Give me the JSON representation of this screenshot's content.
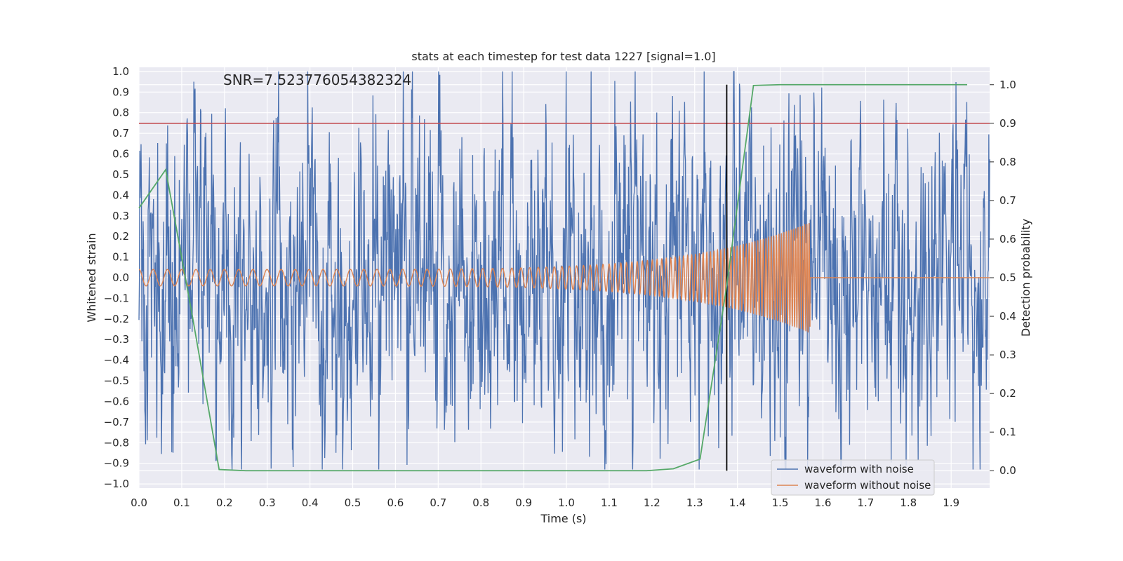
{
  "chart_data": {
    "type": "line",
    "title": "stats at each timestep for test data 1227 [signal=1.0]",
    "xlabel": "Time (s)",
    "ylabel": "Whitened strain",
    "y2label": "Detection probability",
    "annotation": "SNR=7.523776054382324",
    "xlim": [
      0.0,
      1.99
    ],
    "ylim": [
      -1.02,
      1.02
    ],
    "y2lim": [
      -0.045,
      1.045
    ],
    "x_ticks": [
      "0.0",
      "0.1",
      "0.2",
      "0.3",
      "0.4",
      "0.5",
      "0.6",
      "0.7",
      "0.8",
      "0.9",
      "1.0",
      "1.1",
      "1.2",
      "1.3",
      "1.4",
      "1.5",
      "1.6",
      "1.7",
      "1.8",
      "1.9"
    ],
    "y_ticks": [
      "1.0",
      "0.9",
      "0.8",
      "0.7",
      "0.6",
      "0.5",
      "0.4",
      "0.3",
      "0.2",
      "0.1",
      "0.0",
      "−0.1",
      "−0.2",
      "−0.3",
      "−0.4",
      "−0.5",
      "−0.6",
      "−0.7",
      "−0.8",
      "−0.9",
      "−1.0"
    ],
    "y2_ticks": [
      "1.0",
      "0.9",
      "0.8",
      "0.7",
      "0.6",
      "0.5",
      "0.4",
      "0.3",
      "0.2",
      "0.1",
      "0.0"
    ],
    "threshold": {
      "value": 0.9,
      "axis": "right",
      "color": "#c44e52"
    },
    "event_time": {
      "x": 1.375,
      "ymin": 0.0,
      "ymax": 1.0,
      "axis": "right",
      "color": "#000000"
    },
    "series": [
      {
        "name": "waveform with noise",
        "color": "#4c72b0",
        "axis": "left",
        "noise_samples_approx": 2048,
        "amplitude_range": [
          -0.93,
          1.0
        ]
      },
      {
        "name": "waveform without noise",
        "color": "#dd8452",
        "axis": "left",
        "description_values": {
          "start_amplitude": 0.04,
          "end_amplitude": 0.27,
          "chirp_end_time": 1.57,
          "start_frequency": 30,
          "end_frequency": 200
        }
      },
      {
        "name": "Detection probability",
        "color": "#55a868",
        "axis": "right",
        "x": [
          0.0,
          0.0625,
          0.125,
          0.1875,
          0.25,
          0.3125,
          0.375,
          0.4375,
          0.5,
          0.5625,
          0.625,
          0.6875,
          0.75,
          0.8125,
          0.875,
          0.9375,
          1.0,
          1.0625,
          1.125,
          1.1875,
          1.25,
          1.3125,
          1.375,
          1.4375,
          1.5,
          1.5625,
          1.625,
          1.6875,
          1.75,
          1.8125,
          1.875,
          1.9375
        ],
        "values": [
          0.68,
          0.78,
          0.4,
          0.003,
          0.0,
          0.0,
          0.0,
          0.0,
          0.0,
          0.0,
          0.0,
          0.0,
          0.0,
          0.0,
          0.0,
          0.0,
          0.0,
          0.0,
          0.0,
          0.0,
          0.005,
          0.03,
          0.48,
          0.998,
          1.0,
          1.0,
          1.0,
          1.0,
          1.0,
          1.0,
          1.0,
          1.0
        ]
      }
    ],
    "legend": {
      "placement": "lower-right",
      "entries": [
        "waveform with noise",
        "waveform without noise"
      ]
    }
  }
}
